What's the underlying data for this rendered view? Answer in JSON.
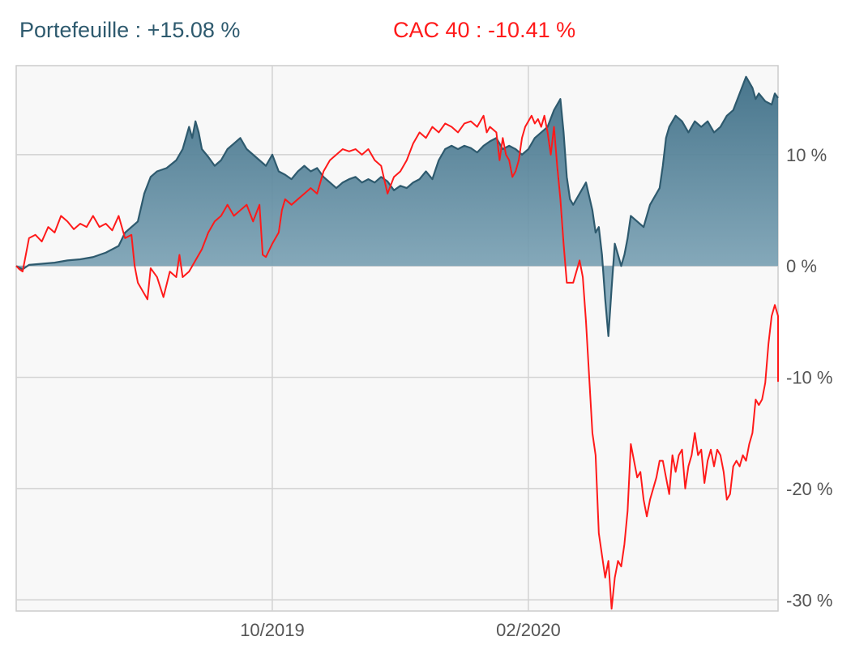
{
  "legend": [
    {
      "label": "Portefeuille : +15.08 %",
      "color": "#2e5a6e"
    },
    {
      "label": "CAC 40 : -10.41 %",
      "color": "#ff1a1a"
    }
  ],
  "chart_data": {
    "type": "area",
    "x_tick_labels": [
      "10/2019",
      "02/2020"
    ],
    "x_ticks": [
      4.0,
      8.0
    ],
    "x_range": [
      0,
      11.9
    ],
    "y_tick_labels": [
      "10 %",
      "0 %",
      "-10 %",
      "-20 %",
      "-30 %"
    ],
    "y_ticks": [
      10,
      0,
      -10,
      -20,
      -30
    ],
    "ylim": [
      -31,
      18
    ],
    "grid": true,
    "series": [
      {
        "name": "Portefeuille",
        "color": "#2e5a6e",
        "fill": true,
        "points": [
          [
            0.0,
            0.0
          ],
          [
            0.1,
            -0.3
          ],
          [
            0.2,
            0.1
          ],
          [
            0.4,
            0.2
          ],
          [
            0.6,
            0.3
          ],
          [
            0.8,
            0.5
          ],
          [
            1.0,
            0.6
          ],
          [
            1.2,
            0.8
          ],
          [
            1.4,
            1.2
          ],
          [
            1.6,
            1.8
          ],
          [
            1.7,
            3.0
          ],
          [
            1.8,
            3.5
          ],
          [
            1.9,
            4.0
          ],
          [
            2.0,
            6.5
          ],
          [
            2.1,
            8.0
          ],
          [
            2.2,
            8.5
          ],
          [
            2.35,
            8.8
          ],
          [
            2.5,
            9.5
          ],
          [
            2.6,
            10.5
          ],
          [
            2.7,
            12.5
          ],
          [
            2.75,
            11.5
          ],
          [
            2.8,
            13.0
          ],
          [
            2.85,
            12.0
          ],
          [
            2.9,
            10.5
          ],
          [
            3.0,
            9.8
          ],
          [
            3.1,
            9.0
          ],
          [
            3.2,
            9.5
          ],
          [
            3.3,
            10.5
          ],
          [
            3.4,
            11.0
          ],
          [
            3.5,
            11.5
          ],
          [
            3.6,
            10.5
          ],
          [
            3.7,
            10.0
          ],
          [
            3.8,
            9.5
          ],
          [
            3.9,
            9.0
          ],
          [
            4.0,
            10.0
          ],
          [
            4.1,
            8.5
          ],
          [
            4.2,
            8.2
          ],
          [
            4.3,
            7.8
          ],
          [
            4.4,
            8.5
          ],
          [
            4.5,
            9.0
          ],
          [
            4.6,
            8.5
          ],
          [
            4.7,
            8.8
          ],
          [
            4.8,
            8.0
          ],
          [
            4.9,
            7.5
          ],
          [
            5.0,
            7.0
          ],
          [
            5.1,
            7.5
          ],
          [
            5.2,
            7.8
          ],
          [
            5.3,
            8.0
          ],
          [
            5.4,
            7.5
          ],
          [
            5.5,
            7.8
          ],
          [
            5.6,
            7.5
          ],
          [
            5.7,
            8.0
          ],
          [
            5.8,
            7.6
          ],
          [
            5.9,
            6.8
          ],
          [
            6.0,
            7.2
          ],
          [
            6.1,
            7.0
          ],
          [
            6.2,
            7.5
          ],
          [
            6.3,
            7.8
          ],
          [
            6.4,
            8.5
          ],
          [
            6.5,
            7.8
          ],
          [
            6.6,
            9.5
          ],
          [
            6.7,
            10.5
          ],
          [
            6.8,
            10.8
          ],
          [
            6.9,
            10.5
          ],
          [
            7.0,
            10.8
          ],
          [
            7.1,
            10.6
          ],
          [
            7.2,
            10.2
          ],
          [
            7.3,
            10.8
          ],
          [
            7.4,
            11.2
          ],
          [
            7.5,
            11.5
          ],
          [
            7.6,
            10.5
          ],
          [
            7.7,
            10.8
          ],
          [
            7.8,
            10.5
          ],
          [
            7.9,
            10.0
          ],
          [
            8.0,
            10.5
          ],
          [
            8.1,
            11.5
          ],
          [
            8.2,
            12.0
          ],
          [
            8.3,
            12.5
          ],
          [
            8.4,
            14.0
          ],
          [
            8.5,
            15.0
          ],
          [
            8.55,
            12.0
          ],
          [
            8.6,
            8.0
          ],
          [
            8.65,
            6.0
          ],
          [
            8.7,
            5.5
          ],
          [
            8.8,
            6.5
          ],
          [
            8.9,
            7.5
          ],
          [
            9.0,
            5.0
          ],
          [
            9.05,
            3.0
          ],
          [
            9.1,
            3.5
          ],
          [
            9.15,
            1.0
          ],
          [
            9.2,
            -3.0
          ],
          [
            9.25,
            -6.3
          ],
          [
            9.3,
            -2.0
          ],
          [
            9.35,
            2.0
          ],
          [
            9.4,
            1.0
          ],
          [
            9.45,
            0.0
          ],
          [
            9.5,
            1.0
          ],
          [
            9.55,
            2.5
          ],
          [
            9.6,
            4.5
          ],
          [
            9.7,
            4.0
          ],
          [
            9.8,
            3.5
          ],
          [
            9.9,
            5.5
          ],
          [
            10.0,
            6.5
          ],
          [
            10.05,
            7.0
          ],
          [
            10.1,
            9.0
          ],
          [
            10.15,
            11.5
          ],
          [
            10.2,
            12.5
          ],
          [
            10.3,
            13.5
          ],
          [
            10.4,
            13.0
          ],
          [
            10.5,
            12.0
          ],
          [
            10.6,
            13.0
          ],
          [
            10.7,
            12.5
          ],
          [
            10.8,
            13.0
          ],
          [
            10.9,
            12.0
          ],
          [
            11.0,
            12.5
          ],
          [
            11.1,
            13.5
          ],
          [
            11.2,
            14.0
          ],
          [
            11.3,
            15.5
          ],
          [
            11.4,
            17.0
          ],
          [
            11.5,
            16.0
          ],
          [
            11.55,
            15.0
          ],
          [
            11.6,
            15.5
          ],
          [
            11.7,
            14.8
          ],
          [
            11.8,
            14.5
          ],
          [
            11.85,
            15.5
          ],
          [
            11.9,
            15.1
          ]
        ]
      },
      {
        "name": "CAC 40",
        "color": "#ff1a1a",
        "fill": false,
        "points": [
          [
            0.0,
            0.0
          ],
          [
            0.05,
            -0.3
          ],
          [
            0.1,
            -0.5
          ],
          [
            0.2,
            2.5
          ],
          [
            0.3,
            2.8
          ],
          [
            0.4,
            2.2
          ],
          [
            0.5,
            3.5
          ],
          [
            0.6,
            3.0
          ],
          [
            0.7,
            4.5
          ],
          [
            0.8,
            4.0
          ],
          [
            0.9,
            3.3
          ],
          [
            1.0,
            3.8
          ],
          [
            1.1,
            3.5
          ],
          [
            1.2,
            4.5
          ],
          [
            1.3,
            3.5
          ],
          [
            1.4,
            3.8
          ],
          [
            1.5,
            3.2
          ],
          [
            1.6,
            4.5
          ],
          [
            1.7,
            2.5
          ],
          [
            1.8,
            2.8
          ],
          [
            1.85,
            0.0
          ],
          [
            1.9,
            -1.5
          ],
          [
            2.0,
            -2.5
          ],
          [
            2.05,
            -3.0
          ],
          [
            2.1,
            -0.2
          ],
          [
            2.2,
            -1.0
          ],
          [
            2.3,
            -2.8
          ],
          [
            2.4,
            -0.5
          ],
          [
            2.5,
            -1.0
          ],
          [
            2.55,
            1.0
          ],
          [
            2.6,
            -1.0
          ],
          [
            2.7,
            -0.5
          ],
          [
            2.8,
            0.5
          ],
          [
            2.9,
            1.5
          ],
          [
            3.0,
            3.0
          ],
          [
            3.1,
            4.0
          ],
          [
            3.2,
            4.5
          ],
          [
            3.3,
            5.5
          ],
          [
            3.4,
            4.5
          ],
          [
            3.5,
            5.0
          ],
          [
            3.6,
            5.5
          ],
          [
            3.7,
            4.0
          ],
          [
            3.8,
            5.5
          ],
          [
            3.85,
            1.0
          ],
          [
            3.9,
            0.8
          ],
          [
            4.0,
            2.0
          ],
          [
            4.1,
            3.0
          ],
          [
            4.15,
            5.0
          ],
          [
            4.2,
            6.0
          ],
          [
            4.3,
            5.5
          ],
          [
            4.4,
            6.0
          ],
          [
            4.5,
            6.5
          ],
          [
            4.6,
            7.0
          ],
          [
            4.7,
            6.5
          ],
          [
            4.8,
            8.5
          ],
          [
            4.9,
            9.5
          ],
          [
            5.0,
            10.0
          ],
          [
            5.1,
            10.5
          ],
          [
            5.2,
            10.3
          ],
          [
            5.3,
            10.5
          ],
          [
            5.4,
            10.0
          ],
          [
            5.5,
            10.5
          ],
          [
            5.6,
            9.5
          ],
          [
            5.7,
            9.0
          ],
          [
            5.8,
            6.5
          ],
          [
            5.9,
            8.0
          ],
          [
            6.0,
            8.5
          ],
          [
            6.1,
            9.5
          ],
          [
            6.2,
            11.0
          ],
          [
            6.3,
            12.0
          ],
          [
            6.4,
            11.5
          ],
          [
            6.5,
            12.5
          ],
          [
            6.6,
            12.0
          ],
          [
            6.7,
            12.8
          ],
          [
            6.8,
            12.5
          ],
          [
            6.9,
            12.0
          ],
          [
            7.0,
            12.8
          ],
          [
            7.1,
            13.0
          ],
          [
            7.2,
            12.5
          ],
          [
            7.3,
            13.5
          ],
          [
            7.35,
            12.0
          ],
          [
            7.4,
            12.5
          ],
          [
            7.5,
            12.0
          ],
          [
            7.55,
            9.5
          ],
          [
            7.6,
            11.5
          ],
          [
            7.65,
            10.0
          ],
          [
            7.7,
            9.5
          ],
          [
            7.75,
            8.0
          ],
          [
            7.8,
            8.5
          ],
          [
            7.85,
            9.5
          ],
          [
            7.9,
            11.5
          ],
          [
            7.95,
            12.5
          ],
          [
            8.0,
            13.0
          ],
          [
            8.05,
            13.5
          ],
          [
            8.1,
            12.8
          ],
          [
            8.15,
            13.2
          ],
          [
            8.2,
            12.5
          ],
          [
            8.25,
            13.5
          ],
          [
            8.3,
            12.0
          ],
          [
            8.35,
            10.0
          ],
          [
            8.4,
            12.5
          ],
          [
            8.45,
            9.0
          ],
          [
            8.5,
            6.0
          ],
          [
            8.55,
            2.0
          ],
          [
            8.6,
            -1.5
          ],
          [
            8.7,
            -1.5
          ],
          [
            8.8,
            0.5
          ],
          [
            8.85,
            -1.0
          ],
          [
            8.9,
            -5.0
          ],
          [
            8.95,
            -10.0
          ],
          [
            9.0,
            -15.0
          ],
          [
            9.05,
            -17.0
          ],
          [
            9.1,
            -24.0
          ],
          [
            9.15,
            -26.0
          ],
          [
            9.2,
            -28.0
          ],
          [
            9.25,
            -26.5
          ],
          [
            9.3,
            -30.8
          ],
          [
            9.35,
            -28.0
          ],
          [
            9.4,
            -26.5
          ],
          [
            9.45,
            -27.0
          ],
          [
            9.5,
            -25.0
          ],
          [
            9.55,
            -22.0
          ],
          [
            9.6,
            -16.0
          ],
          [
            9.65,
            -17.5
          ],
          [
            9.7,
            -19.0
          ],
          [
            9.75,
            -18.5
          ],
          [
            9.8,
            -21.0
          ],
          [
            9.85,
            -22.5
          ],
          [
            9.9,
            -21.0
          ],
          [
            9.95,
            -20.0
          ],
          [
            10.0,
            -19.0
          ],
          [
            10.05,
            -17.5
          ],
          [
            10.1,
            -17.5
          ],
          [
            10.15,
            -19.0
          ],
          [
            10.2,
            -20.5
          ],
          [
            10.25,
            -17.0
          ],
          [
            10.3,
            -18.5
          ],
          [
            10.35,
            -17.0
          ],
          [
            10.4,
            -16.5
          ],
          [
            10.45,
            -20.0
          ],
          [
            10.5,
            -18.0
          ],
          [
            10.55,
            -17.0
          ],
          [
            10.6,
            -15.0
          ],
          [
            10.65,
            -17.0
          ],
          [
            10.7,
            -16.5
          ],
          [
            10.75,
            -19.5
          ],
          [
            10.8,
            -17.5
          ],
          [
            10.85,
            -16.5
          ],
          [
            10.9,
            -18.0
          ],
          [
            10.95,
            -16.5
          ],
          [
            11.0,
            -17.0
          ],
          [
            11.05,
            -18.5
          ],
          [
            11.1,
            -21.0
          ],
          [
            11.15,
            -20.5
          ],
          [
            11.2,
            -18.0
          ],
          [
            11.25,
            -17.5
          ],
          [
            11.3,
            -18.0
          ],
          [
            11.35,
            -17.0
          ],
          [
            11.4,
            -17.5
          ],
          [
            11.45,
            -16.0
          ],
          [
            11.5,
            -15.0
          ],
          [
            11.55,
            -12.0
          ],
          [
            11.6,
            -12.5
          ],
          [
            11.65,
            -12.0
          ],
          [
            11.7,
            -10.5
          ],
          [
            11.75,
            -7.0
          ],
          [
            11.8,
            -4.5
          ],
          [
            11.85,
            -3.5
          ],
          [
            11.9,
            -4.5
          ],
          [
            11.95,
            -10.4
          ]
        ]
      }
    ]
  }
}
